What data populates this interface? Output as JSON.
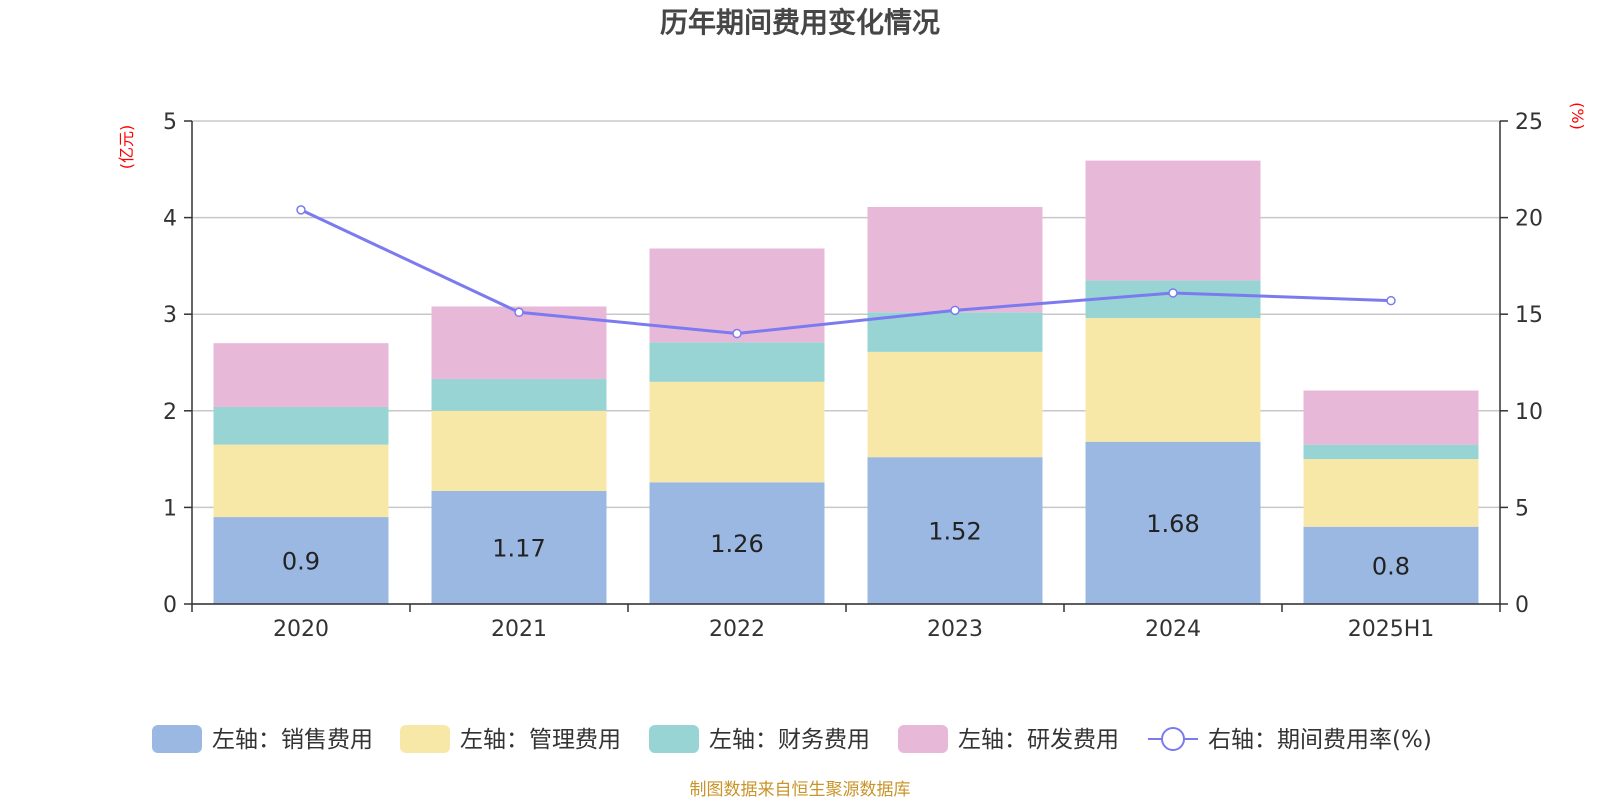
{
  "chart_data": {
    "type": "bar",
    "title": "历年期间费用变化情况",
    "categories": [
      "2020",
      "2021",
      "2022",
      "2023",
      "2024",
      "2025H1"
    ],
    "y_left": {
      "unit": "(亿元)",
      "ticks": [
        "0",
        "1",
        "2",
        "3",
        "4",
        "5"
      ],
      "min": 0,
      "max": 5
    },
    "y_right": {
      "unit": "(%)",
      "ticks": [
        "0",
        "5",
        "10",
        "15",
        "20",
        "25"
      ],
      "min": 0,
      "max": 25
    },
    "stacked": true,
    "series": [
      {
        "name": "左轴：销售费用",
        "axis": "left",
        "color": "#9bb8e2",
        "values": [
          0.9,
          1.17,
          1.26,
          1.52,
          1.68,
          0.8
        ],
        "labels": [
          "0.9",
          "1.17",
          "1.26",
          "1.52",
          "1.68",
          "0.8"
        ]
      },
      {
        "name": "左轴：管理费用",
        "axis": "left",
        "color": "#f8e8a8",
        "values": [
          0.75,
          0.83,
          1.04,
          1.09,
          1.28,
          0.7
        ]
      },
      {
        "name": "左轴：财务费用",
        "axis": "left",
        "color": "#98d4d4",
        "values": [
          0.39,
          0.33,
          0.41,
          0.41,
          0.39,
          0.15
        ]
      },
      {
        "name": "左轴：研发费用",
        "axis": "left",
        "color": "#e8b8d8",
        "values": [
          0.66,
          0.75,
          0.97,
          1.09,
          1.24,
          0.56
        ]
      },
      {
        "name": "右轴：期间费用率(%)",
        "axis": "right",
        "type": "line",
        "color": "#7b7bef",
        "values": [
          20.4,
          15.1,
          14.0,
          15.2,
          16.1,
          15.7
        ]
      }
    ],
    "legend_position": "bottom",
    "grid": true
  },
  "source": "制图数据来自恒生聚源数据库"
}
